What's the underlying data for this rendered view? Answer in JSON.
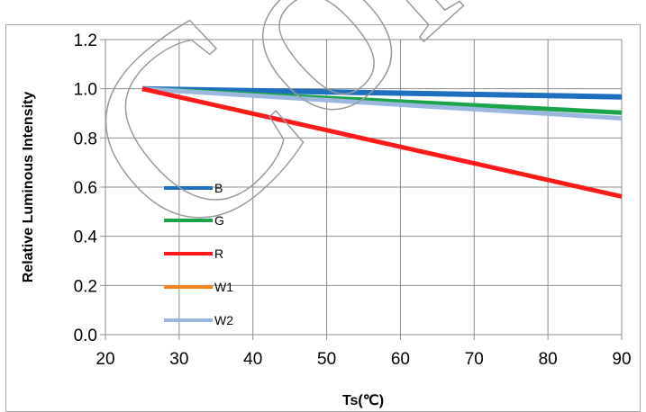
{
  "watermark": "Con",
  "chart_data": {
    "type": "line",
    "title": "",
    "xlabel": "Ts(℃)",
    "ylabel": "Relative Luminous Intensity",
    "xlim": [
      20,
      90
    ],
    "ylim": [
      0.0,
      1.2
    ],
    "xticks": [
      "20",
      "30",
      "40",
      "50",
      "60",
      "70",
      "80",
      "90"
    ],
    "yticks": [
      "0.0",
      "0.2",
      "0.4",
      "0.6",
      "0.8",
      "1.0",
      "1.2"
    ],
    "grid": true,
    "legend_position": "left-inside",
    "series": [
      {
        "name": "B",
        "color": "#1f6fbf",
        "x": [
          25,
          90
        ],
        "y": [
          1.0,
          0.967
        ]
      },
      {
        "name": "G",
        "color": "#1ba34a",
        "x": [
          25,
          90
        ],
        "y": [
          1.0,
          0.903
        ]
      },
      {
        "name": "R",
        "color": "#ff1a1a",
        "x": [
          25,
          90
        ],
        "y": [
          1.0,
          0.562
        ]
      },
      {
        "name": "W1",
        "color": "#f5821f",
        "x": [
          25,
          90
        ],
        "y": [
          1.0,
          0.88
        ]
      },
      {
        "name": "W2",
        "color": "#9bb7e0",
        "x": [
          25,
          90
        ],
        "y": [
          1.0,
          0.88
        ]
      }
    ]
  }
}
